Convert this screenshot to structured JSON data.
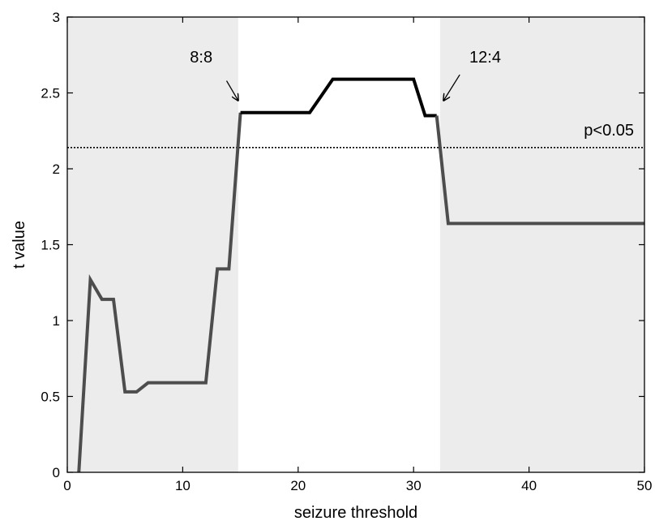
{
  "chart_data": {
    "type": "line",
    "title": "",
    "xlabel": "seizure threshold",
    "ylabel": "t value",
    "xlim": [
      0,
      50
    ],
    "ylim": [
      0,
      3
    ],
    "xticks": [
      0,
      10,
      20,
      30,
      40,
      50
    ],
    "yticks": [
      0,
      0.5,
      1,
      1.5,
      2,
      2.5,
      3
    ],
    "xtick_labels": [
      "0",
      "10",
      "20",
      "30",
      "40",
      "50"
    ],
    "ytick_labels": [
      "0",
      "0.5",
      "1",
      "1.5",
      "2",
      "2.5",
      "3"
    ],
    "grid": false,
    "shaded_regions": [
      {
        "x_start": 0,
        "x_end": 14.8,
        "color": "#ececec"
      },
      {
        "x_start": 32.3,
        "x_end": 50,
        "color": "#ececec"
      }
    ],
    "threshold_line": {
      "y": 2.14,
      "label": "p<0.05",
      "style": "dotted"
    },
    "series": [
      {
        "color": "#4d4d4d",
        "x": [
          1,
          2,
          3,
          4,
          5,
          6,
          7,
          8,
          9,
          10,
          11,
          12,
          13,
          14,
          15
        ],
        "y": [
          0,
          1.27,
          1.14,
          1.14,
          0.53,
          0.53,
          0.59,
          0.59,
          0.59,
          0.59,
          0.59,
          0.59,
          1.34,
          1.34,
          2.37
        ]
      },
      {
        "color": "#000000",
        "x": [
          15,
          16,
          17,
          18,
          19,
          20,
          21,
          22,
          23,
          24,
          25,
          26,
          27,
          28,
          29,
          30,
          31,
          32
        ],
        "y": [
          2.37,
          2.37,
          2.37,
          2.37,
          2.37,
          2.37,
          2.37,
          2.48,
          2.59,
          2.59,
          2.59,
          2.59,
          2.59,
          2.59,
          2.59,
          2.59,
          2.35,
          2.35
        ]
      },
      {
        "color": "#4d4d4d",
        "x": [
          32,
          33,
          34,
          35,
          36,
          37,
          38,
          39,
          40,
          41,
          42,
          43,
          44,
          45,
          46,
          47,
          48,
          49,
          50
        ],
        "y": [
          2.35,
          1.64,
          1.64,
          1.64,
          1.64,
          1.64,
          1.64,
          1.64,
          1.64,
          1.64,
          1.64,
          1.64,
          1.64,
          1.64,
          1.64,
          1.64,
          1.64,
          1.64,
          1.64
        ]
      }
    ],
    "annotations": [
      {
        "text": "8:8",
        "text_x": 11.6,
        "text_y": 2.7,
        "arrow_from": [
          13.8,
          2.58
        ],
        "arrow_to": [
          14.8,
          2.45
        ]
      },
      {
        "text": "12:4",
        "text_x": 36.2,
        "text_y": 2.7,
        "arrow_from": [
          34.0,
          2.62
        ],
        "arrow_to": [
          32.6,
          2.45
        ]
      }
    ]
  }
}
